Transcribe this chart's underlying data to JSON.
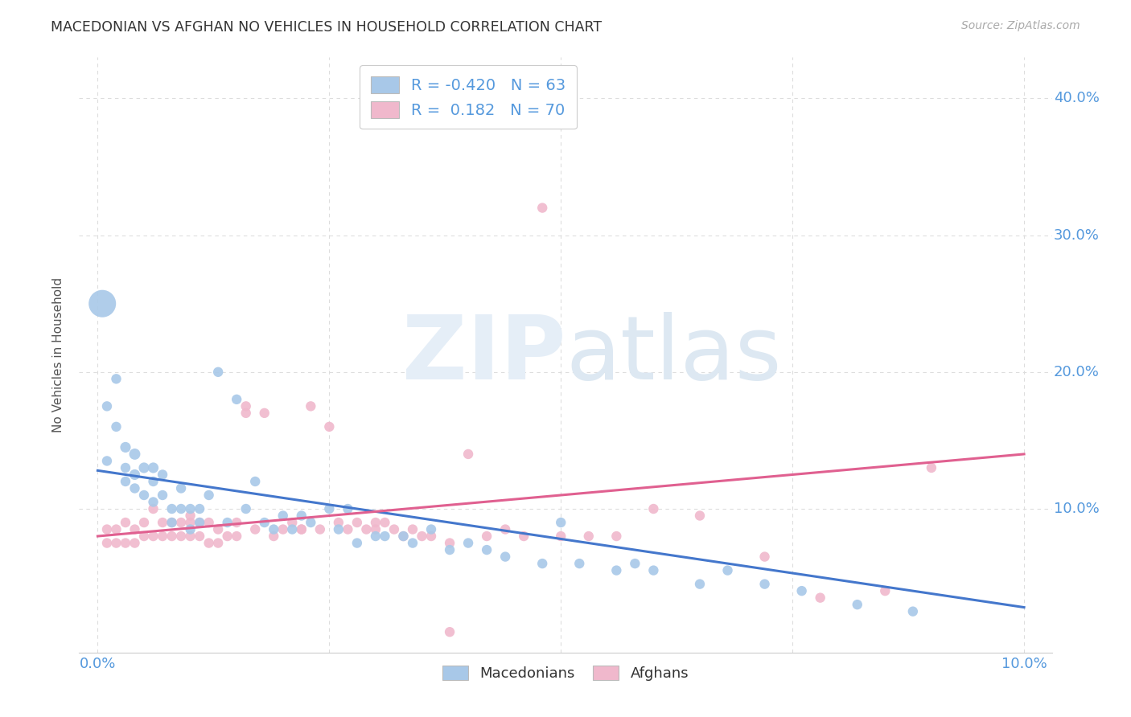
{
  "title": "MACEDONIAN VS AFGHAN NO VEHICLES IN HOUSEHOLD CORRELATION CHART",
  "source": "Source: ZipAtlas.com",
  "ylabel": "No Vehicles in Household",
  "xlim": [
    -0.002,
    0.103
  ],
  "ylim": [
    -0.005,
    0.43
  ],
  "ytick_positions": [
    0.1,
    0.2,
    0.3,
    0.4
  ],
  "ytick_labels": [
    "10.0%",
    "20.0%",
    "30.0%",
    "40.0%"
  ],
  "xtick_positions": [
    0.0,
    0.025,
    0.05,
    0.075,
    0.1
  ],
  "xtick_labels": [
    "0.0%",
    "",
    "",
    "",
    "10.0%"
  ],
  "mac_color": "#a8c8e8",
  "afg_color": "#f0b8cc",
  "mac_line_color": "#4477cc",
  "afg_line_color": "#e06090",
  "mac_R": -0.42,
  "mac_N": 63,
  "afg_R": 0.182,
  "afg_N": 70,
  "background_color": "#ffffff",
  "grid_color": "#dddddd",
  "title_color": "#333333",
  "axis_label_color": "#555555",
  "tick_color": "#5599dd",
  "watermark_color": "#e5eef7",
  "legend_entries": [
    "Macedonians",
    "Afghans"
  ],
  "mac_scatter_x": [
    0.0005,
    0.001,
    0.001,
    0.002,
    0.002,
    0.003,
    0.003,
    0.003,
    0.004,
    0.004,
    0.004,
    0.005,
    0.005,
    0.006,
    0.006,
    0.006,
    0.007,
    0.007,
    0.008,
    0.008,
    0.009,
    0.009,
    0.01,
    0.01,
    0.011,
    0.011,
    0.012,
    0.013,
    0.014,
    0.015,
    0.016,
    0.017,
    0.018,
    0.019,
    0.02,
    0.021,
    0.022,
    0.023,
    0.025,
    0.026,
    0.027,
    0.028,
    0.03,
    0.031,
    0.033,
    0.034,
    0.036,
    0.038,
    0.04,
    0.042,
    0.044,
    0.048,
    0.05,
    0.052,
    0.056,
    0.058,
    0.06,
    0.065,
    0.068,
    0.072,
    0.076,
    0.082,
    0.088
  ],
  "mac_scatter_y": [
    0.25,
    0.175,
    0.135,
    0.195,
    0.16,
    0.145,
    0.13,
    0.12,
    0.14,
    0.125,
    0.115,
    0.13,
    0.11,
    0.13,
    0.12,
    0.105,
    0.125,
    0.11,
    0.1,
    0.09,
    0.115,
    0.1,
    0.1,
    0.085,
    0.1,
    0.09,
    0.11,
    0.2,
    0.09,
    0.18,
    0.1,
    0.12,
    0.09,
    0.085,
    0.095,
    0.085,
    0.095,
    0.09,
    0.1,
    0.085,
    0.1,
    0.075,
    0.08,
    0.08,
    0.08,
    0.075,
    0.085,
    0.07,
    0.075,
    0.07,
    0.065,
    0.06,
    0.09,
    0.06,
    0.055,
    0.06,
    0.055,
    0.045,
    0.055,
    0.045,
    0.04,
    0.03,
    0.025
  ],
  "mac_scatter_size": [
    600,
    80,
    80,
    80,
    80,
    90,
    80,
    80,
    100,
    90,
    80,
    90,
    80,
    90,
    80,
    80,
    80,
    80,
    80,
    80,
    80,
    80,
    80,
    80,
    80,
    80,
    80,
    80,
    80,
    80,
    80,
    80,
    80,
    80,
    80,
    80,
    80,
    80,
    80,
    80,
    80,
    80,
    80,
    80,
    80,
    80,
    80,
    80,
    80,
    80,
    80,
    80,
    80,
    80,
    80,
    80,
    80,
    80,
    80,
    80,
    80,
    80,
    80
  ],
  "afg_scatter_x": [
    0.001,
    0.001,
    0.002,
    0.002,
    0.003,
    0.003,
    0.004,
    0.004,
    0.005,
    0.005,
    0.006,
    0.006,
    0.007,
    0.007,
    0.008,
    0.008,
    0.009,
    0.009,
    0.01,
    0.01,
    0.011,
    0.011,
    0.012,
    0.012,
    0.013,
    0.013,
    0.014,
    0.015,
    0.015,
    0.016,
    0.017,
    0.018,
    0.019,
    0.02,
    0.021,
    0.022,
    0.023,
    0.024,
    0.025,
    0.026,
    0.027,
    0.028,
    0.029,
    0.03,
    0.031,
    0.032,
    0.033,
    0.034,
    0.035,
    0.036,
    0.038,
    0.04,
    0.042,
    0.044,
    0.046,
    0.05,
    0.053,
    0.056,
    0.06,
    0.065,
    0.072,
    0.078,
    0.085,
    0.048,
    0.038,
    0.03,
    0.022,
    0.016,
    0.01,
    0.09
  ],
  "afg_scatter_y": [
    0.085,
    0.075,
    0.085,
    0.075,
    0.09,
    0.075,
    0.085,
    0.075,
    0.09,
    0.08,
    0.1,
    0.08,
    0.09,
    0.08,
    0.09,
    0.08,
    0.09,
    0.08,
    0.095,
    0.08,
    0.09,
    0.08,
    0.09,
    0.075,
    0.085,
    0.075,
    0.08,
    0.09,
    0.08,
    0.175,
    0.085,
    0.17,
    0.08,
    0.085,
    0.09,
    0.085,
    0.175,
    0.085,
    0.16,
    0.09,
    0.085,
    0.09,
    0.085,
    0.09,
    0.09,
    0.085,
    0.08,
    0.085,
    0.08,
    0.08,
    0.075,
    0.14,
    0.08,
    0.085,
    0.08,
    0.08,
    0.08,
    0.08,
    0.1,
    0.095,
    0.065,
    0.035,
    0.04,
    0.32,
    0.01,
    0.085,
    0.085,
    0.17,
    0.09,
    0.13
  ],
  "afg_scatter_size": [
    80,
    80,
    80,
    80,
    80,
    80,
    80,
    80,
    80,
    80,
    80,
    80,
    80,
    80,
    80,
    80,
    80,
    80,
    80,
    80,
    80,
    80,
    80,
    80,
    80,
    80,
    80,
    80,
    80,
    80,
    80,
    80,
    80,
    80,
    80,
    80,
    80,
    80,
    80,
    80,
    80,
    80,
    80,
    80,
    80,
    80,
    80,
    80,
    80,
    80,
    80,
    80,
    80,
    80,
    80,
    80,
    80,
    80,
    80,
    80,
    80,
    80,
    80,
    80,
    80,
    80,
    80,
    80,
    80,
    80
  ]
}
